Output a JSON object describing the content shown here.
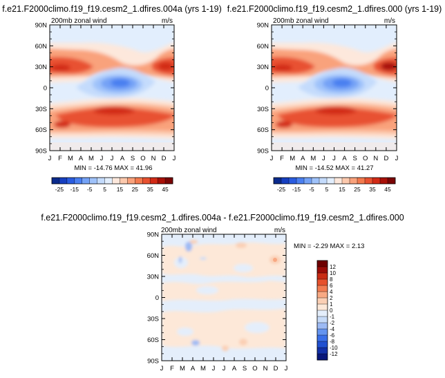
{
  "chart_data": [
    {
      "type": "heatmap",
      "title": "f.e21.F2000climo.f19_f19.cesm2_1.dfires.004a (yrs 1-19)",
      "subtitle": "200mb zonal wind",
      "units": "m/s",
      "variable": "zonal wind at 200 mb",
      "x_tick_labels": [
        "J",
        "F",
        "M",
        "A",
        "M",
        "J",
        "J",
        "A",
        "S",
        "O",
        "N",
        "D",
        "J"
      ],
      "y_tick_labels": [
        "90N",
        "60N",
        "30N",
        "0",
        "30S",
        "60S",
        "90S"
      ],
      "ylim": [
        -90,
        90
      ],
      "stats_text": "MIN = -14.76 MAX =  41.96",
      "min": -14.76,
      "max": 41.96,
      "colorbar": {
        "orientation": "horizontal",
        "tick_labels": [
          "-25",
          "-15",
          "-5",
          "5",
          "15",
          "25",
          "35",
          "45"
        ],
        "levels": [
          -25,
          -20,
          -15,
          -10,
          -5,
          0,
          5,
          10,
          15,
          20,
          25,
          30,
          35,
          40,
          45
        ],
        "colors": [
          "#0a2a8c",
          "#163fc0",
          "#2a5ce0",
          "#4a7ff0",
          "#74a2f6",
          "#9fc2fa",
          "#c4dbfc",
          "#e2eefd",
          "#fde8dc",
          "#fcc9ad",
          "#f9a27c",
          "#f37a4e",
          "#e85130",
          "#d22a16",
          "#a81008",
          "#7a0505"
        ]
      }
    },
    {
      "type": "heatmap",
      "title": "f.e21.F2000climo.f19_f19.cesm2_1.dfires.000 (yrs 1-19)",
      "subtitle": "200mb zonal wind",
      "units": "m/s",
      "variable": "zonal wind at 200 mb",
      "x_tick_labels": [
        "J",
        "F",
        "M",
        "A",
        "M",
        "J",
        "J",
        "A",
        "S",
        "O",
        "N",
        "D",
        "J"
      ],
      "y_tick_labels": [
        "90N",
        "60N",
        "30N",
        "0",
        "30S",
        "60S",
        "90S"
      ],
      "ylim": [
        -90,
        90
      ],
      "stats_text": "MIN = -14.52 MAX =  41.27",
      "min": -14.52,
      "max": 41.27,
      "colorbar": {
        "orientation": "horizontal",
        "tick_labels": [
          "-25",
          "-15",
          "-5",
          "5",
          "15",
          "25",
          "35",
          "45"
        ],
        "levels": [
          -25,
          -20,
          -15,
          -10,
          -5,
          0,
          5,
          10,
          15,
          20,
          25,
          30,
          35,
          40,
          45
        ],
        "colors": [
          "#0a2a8c",
          "#163fc0",
          "#2a5ce0",
          "#4a7ff0",
          "#74a2f6",
          "#9fc2fa",
          "#c4dbfc",
          "#e2eefd",
          "#fde8dc",
          "#fcc9ad",
          "#f9a27c",
          "#f37a4e",
          "#e85130",
          "#d22a16",
          "#a81008",
          "#7a0505"
        ]
      }
    },
    {
      "type": "heatmap",
      "title": "f.e21.F2000climo.f19_f19.cesm2_1.dfires.004a - f.e21.F2000climo.f19_f19.cesm2_1.dfires.000",
      "subtitle": "200mb zonal wind",
      "units": "m/s",
      "variable": "difference in zonal wind at 200 mb",
      "x_tick_labels": [
        "J",
        "F",
        "M",
        "A",
        "M",
        "J",
        "J",
        "A",
        "S",
        "O",
        "N",
        "D",
        "J"
      ],
      "y_tick_labels": [
        "90N",
        "60N",
        "30N",
        "0",
        "30S",
        "60S",
        "90S"
      ],
      "ylim": [
        -90,
        90
      ],
      "stats_text": "MIN =  -2.29 MAX =   2.13",
      "min": -2.29,
      "max": 2.13,
      "colorbar": {
        "orientation": "vertical",
        "tick_labels": [
          "12",
          "10",
          "8",
          "6",
          "4",
          "2",
          "1",
          "0",
          "-1",
          "-2",
          "-4",
          "-6",
          "-8",
          "-10",
          "-12"
        ],
        "levels": [
          -12,
          -10,
          -8,
          -6,
          -4,
          -2,
          -1,
          0,
          1,
          2,
          4,
          6,
          8,
          10,
          12
        ],
        "colors": [
          "#08167a",
          "#1230a8",
          "#2050d0",
          "#3a6fe8",
          "#6494f0",
          "#9dbaf4",
          "#c7dbf8",
          "#e4eefb",
          "#fde8d8",
          "#fbcfb4",
          "#f8a983",
          "#f27d52",
          "#e6512c",
          "#c82c14",
          "#9a0c08",
          "#6e0000"
        ]
      }
    }
  ]
}
